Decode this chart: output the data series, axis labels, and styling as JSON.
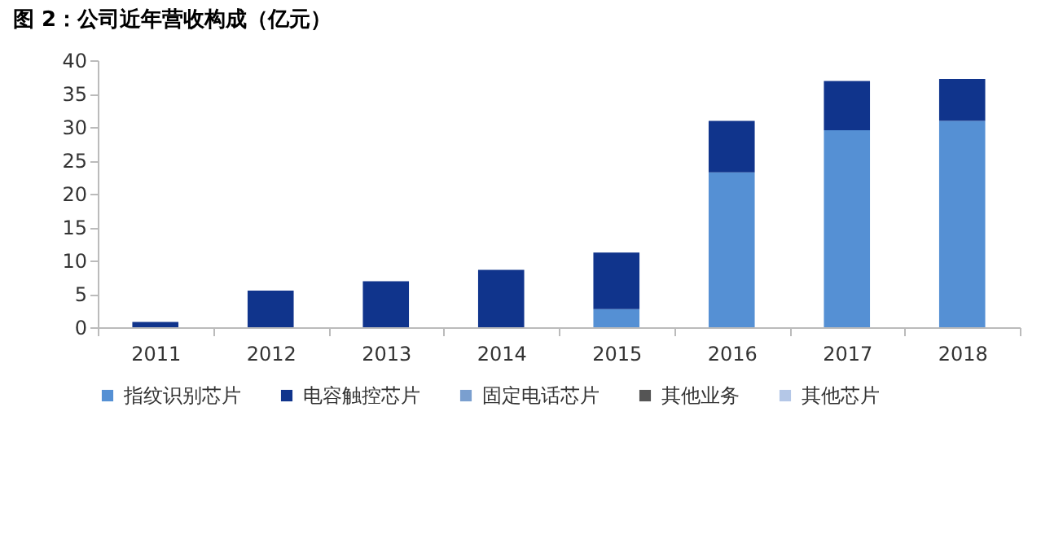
{
  "chart_data": {
    "type": "bar",
    "title": "图 2：公司近年营收构成（亿元）",
    "stacked": true,
    "legend": "bottom",
    "grid": false,
    "categories": [
      "2011",
      "2012",
      "2013",
      "2014",
      "2015",
      "2016",
      "2017",
      "2018"
    ],
    "ylim": [
      0,
      40
    ],
    "yticks": [
      0,
      5,
      10,
      15,
      20,
      25,
      30,
      35,
      40
    ],
    "series": [
      {
        "name": "指纹识别芯片",
        "color": "#5590d4",
        "values": [
          0,
          0,
          0,
          0,
          2.7,
          23.2,
          29.5,
          30.9
        ]
      },
      {
        "name": "电容触控芯片",
        "color": "#10348c",
        "values": [
          0.8,
          5.5,
          6.9,
          8.6,
          8.5,
          7.7,
          7.4,
          6.3
        ]
      },
      {
        "name": "固定电话芯片",
        "color": "#7a9fcf",
        "values": [
          0,
          0,
          0,
          0,
          0,
          0,
          0,
          0
        ]
      },
      {
        "name": "其他业务",
        "color": "#555555",
        "values": [
          0,
          0,
          0,
          0,
          0,
          0,
          0,
          0
        ]
      },
      {
        "name": "其他芯片",
        "color": "#b4c7e7",
        "values": [
          0,
          0,
          0,
          0,
          0,
          0,
          0,
          0
        ]
      }
    ]
  }
}
